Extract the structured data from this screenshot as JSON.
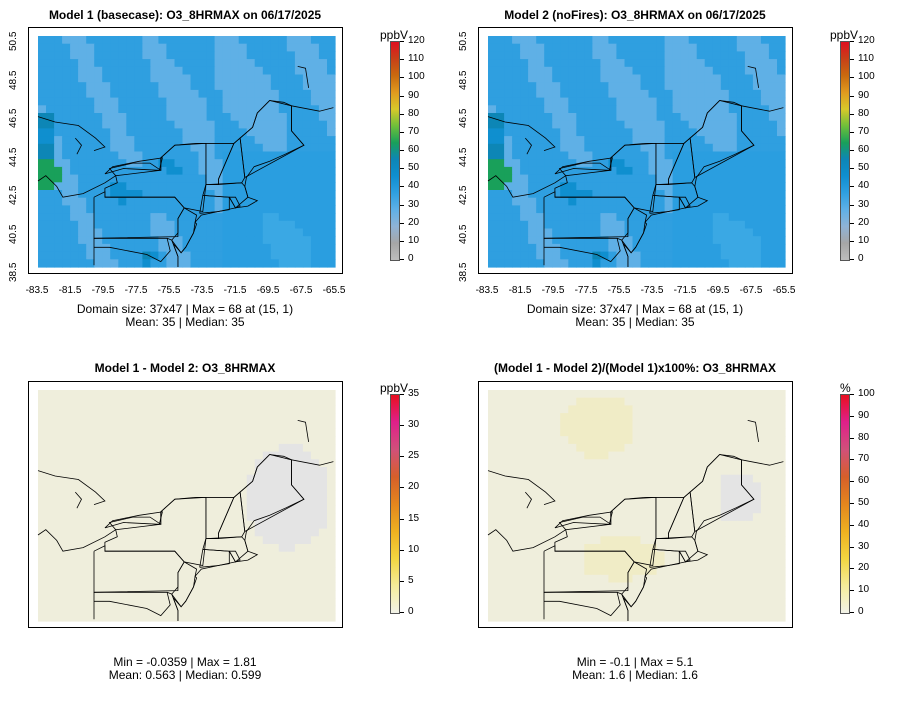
{
  "panels": [
    {
      "title": "Model 1 (basecase): O3_8HRMAX on 06/17/2025",
      "field": "conc",
      "x_ticks": [
        "-83.5",
        "-81.5",
        "-79.5",
        "-77.5",
        "-75.5",
        "-73.5",
        "-71.5",
        "-69.5",
        "-67.5",
        "-65.5"
      ],
      "y_ticks": [
        "38.5",
        "40.5",
        "42.5",
        "44.5",
        "46.5",
        "48.5",
        "50.5"
      ],
      "stats_line1": "Domain size: 37x47 | Max = 68 at (15, 1)",
      "stats_line2": "Mean: 35 |  Median: 35",
      "colorbar": {
        "unit": "ppbV",
        "ticks": [
          "120",
          "110",
          "100",
          "90",
          "80",
          "70",
          "60",
          "50",
          "40",
          "30",
          "20",
          "10",
          "0"
        ]
      }
    },
    {
      "title": "Model 2 (noFires): O3_8HRMAX on 06/17/2025",
      "field": "conc",
      "x_ticks": [
        "-83.5",
        "-81.5",
        "-79.5",
        "-77.5",
        "-75.5",
        "-73.5",
        "-71.5",
        "-69.5",
        "-67.5",
        "-65.5"
      ],
      "y_ticks": [
        "38.5",
        "40.5",
        "42.5",
        "44.5",
        "46.5",
        "48.5",
        "50.5"
      ],
      "stats_line1": "Domain size: 37x47 | Max = 68 at (15, 1)",
      "stats_line2": "Mean: 35 |  Median: 35",
      "colorbar": {
        "unit": "ppbV",
        "ticks": [
          "120",
          "110",
          "100",
          "90",
          "80",
          "70",
          "60",
          "50",
          "40",
          "30",
          "20",
          "10",
          "0"
        ]
      }
    },
    {
      "title": "Model 1 - Model 2: O3_8HRMAX",
      "field": "diff",
      "x_ticks": [],
      "y_ticks": [],
      "stats_line1": "Min = -0.0359 | Max = 1.81",
      "stats_line2": "Mean: 0.563 |  Median: 0.599",
      "colorbar": {
        "unit": "ppbV",
        "ticks": [
          "35",
          "30",
          "25",
          "20",
          "15",
          "10",
          "5",
          "0"
        ]
      }
    },
    {
      "title": "(Model 1 - Model 2)/(Model 1)x100%: O3_8HRMAX",
      "field": "pct",
      "x_ticks": [],
      "y_ticks": [],
      "stats_line1": "Min = -0.1 | Max = 5.1",
      "stats_line2": "Mean: 1.6 |  Median: 1.6",
      "colorbar": {
        "unit": "%",
        "ticks": [
          "100",
          "90",
          "80",
          "70",
          "60",
          "50",
          "40",
          "30",
          "20",
          "10",
          "0"
        ]
      }
    }
  ],
  "colors": {
    "conc_scale": [
      "#bdbdbd",
      "#a6a6a6",
      "#8fb3d6",
      "#5fb0e6",
      "#2f9fe0",
      "#0f8fcf",
      "#0d86b6",
      "#19a05a",
      "#6fbf3a",
      "#d8c92a",
      "#e09a1f",
      "#c96a0f",
      "#c84018",
      "#e01020"
    ],
    "diff_scale": [
      "#f2f2e8",
      "#f4ec9a",
      "#f3d540",
      "#eeb020",
      "#e4861e",
      "#d65f2a",
      "#d1507a",
      "#e0208a",
      "#e81020"
    ],
    "ocean_blue": "#2a9ee0",
    "diff_fill": "#efeedc",
    "diff_background": "#e4e4e4"
  }
}
